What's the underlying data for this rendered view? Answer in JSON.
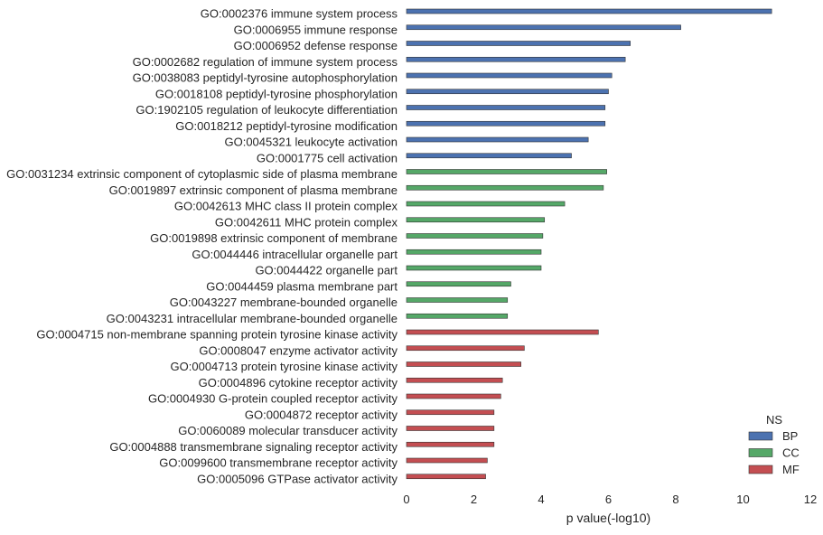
{
  "chart_data": {
    "type": "bar",
    "orientation": "horizontal",
    "xlabel": "p value(-log10)",
    "xlim": [
      0,
      12
    ],
    "xticks": [
      0,
      2,
      4,
      6,
      8,
      10,
      12
    ],
    "grid": false,
    "legend": {
      "title": "NS",
      "placement": "bottom-right",
      "entries": [
        {
          "name": "BP",
          "color": "#4c72b0"
        },
        {
          "name": "CC",
          "color": "#55a868"
        },
        {
          "name": "MF",
          "color": "#c44e52"
        }
      ]
    },
    "categories": [
      {
        "label": "GO:0002376 immune system process",
        "value": 10.85,
        "ns": "BP"
      },
      {
        "label": "GO:0006955 immune response",
        "value": 8.15,
        "ns": "BP"
      },
      {
        "label": "GO:0006952 defense response",
        "value": 6.65,
        "ns": "BP"
      },
      {
        "label": "GO:0002682 regulation of immune system process",
        "value": 6.5,
        "ns": "BP"
      },
      {
        "label": "GO:0038083 peptidyl-tyrosine autophosphorylation",
        "value": 6.1,
        "ns": "BP"
      },
      {
        "label": "GO:0018108 peptidyl-tyrosine phosphorylation",
        "value": 6.0,
        "ns": "BP"
      },
      {
        "label": "GO:1902105 regulation of leukocyte differentiation",
        "value": 5.9,
        "ns": "BP"
      },
      {
        "label": "GO:0018212 peptidyl-tyrosine modification",
        "value": 5.9,
        "ns": "BP"
      },
      {
        "label": "GO:0045321 leukocyte activation",
        "value": 5.4,
        "ns": "BP"
      },
      {
        "label": "GO:0001775 cell activation",
        "value": 4.9,
        "ns": "BP"
      },
      {
        "label": "GO:0031234 extrinsic component of cytoplasmic side of plasma membrane",
        "value": 5.95,
        "ns": "CC"
      },
      {
        "label": "GO:0019897 extrinsic component of plasma membrane",
        "value": 5.85,
        "ns": "CC"
      },
      {
        "label": "GO:0042613 MHC class II protein complex",
        "value": 4.7,
        "ns": "CC"
      },
      {
        "label": "GO:0042611 MHC protein complex",
        "value": 4.1,
        "ns": "CC"
      },
      {
        "label": "GO:0019898 extrinsic component of membrane",
        "value": 4.05,
        "ns": "CC"
      },
      {
        "label": "GO:0044446 intracellular organelle part",
        "value": 4.0,
        "ns": "CC"
      },
      {
        "label": "GO:0044422 organelle part",
        "value": 4.0,
        "ns": "CC"
      },
      {
        "label": "GO:0044459 plasma membrane part",
        "value": 3.1,
        "ns": "CC"
      },
      {
        "label": "GO:0043227 membrane-bounded organelle",
        "value": 3.0,
        "ns": "CC"
      },
      {
        "label": "GO:0043231 intracellular membrane-bounded organelle",
        "value": 3.0,
        "ns": "CC"
      },
      {
        "label": "GO:0004715 non-membrane spanning protein tyrosine kinase activity",
        "value": 5.7,
        "ns": "MF"
      },
      {
        "label": "GO:0008047 enzyme activator activity",
        "value": 3.5,
        "ns": "MF"
      },
      {
        "label": "GO:0004713 protein tyrosine kinase activity",
        "value": 3.4,
        "ns": "MF"
      },
      {
        "label": "GO:0004896 cytokine receptor activity",
        "value": 2.85,
        "ns": "MF"
      },
      {
        "label": "GO:0004930 G-protein coupled receptor activity",
        "value": 2.8,
        "ns": "MF"
      },
      {
        "label": "GO:0004872 receptor activity",
        "value": 2.6,
        "ns": "MF"
      },
      {
        "label": "GO:0060089 molecular transducer activity",
        "value": 2.6,
        "ns": "MF"
      },
      {
        "label": "GO:0004888 transmembrane signaling receptor activity",
        "value": 2.6,
        "ns": "MF"
      },
      {
        "label": "GO:0099600 transmembrane receptor activity",
        "value": 2.4,
        "ns": "MF"
      },
      {
        "label": "GO:0005096 GTPase activator activity",
        "value": 2.35,
        "ns": "MF"
      }
    ]
  }
}
